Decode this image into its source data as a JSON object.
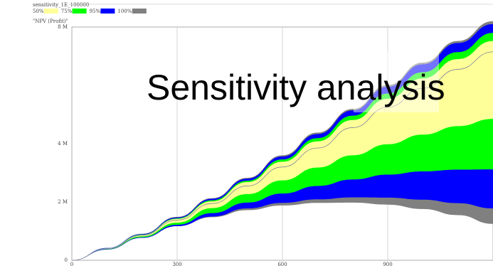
{
  "overlay_title": "Sensitivity analysis",
  "chart_data": {
    "type": "area",
    "title": "sensitivity_1E_100000",
    "ylabel": "\"NPV (Profit)\"",
    "xlabel": "",
    "ylim": [
      0,
      8
    ],
    "xlim": [
      0,
      1200
    ],
    "y_unit": "M",
    "y_ticks": [
      {
        "value": 0,
        "label": "0"
      },
      {
        "value": 2,
        "label": "2 M"
      },
      {
        "value": 4,
        "label": "4 M"
      },
      {
        "value": 8,
        "label": "8 M"
      }
    ],
    "x_ticks": [
      {
        "value": 0,
        "label": "0"
      },
      {
        "value": 300,
        "label": "300"
      },
      {
        "value": 600,
        "label": "600"
      },
      {
        "value": 900,
        "label": "900"
      }
    ],
    "legend": [
      {
        "label": "50%",
        "color": "#ffff99"
      },
      {
        "label": "75%",
        "color": "#00ff00"
      },
      {
        "label": "95%",
        "color": "#0000ff"
      },
      {
        "label": "100%",
        "color": "#808080"
      }
    ],
    "x": [
      0,
      100,
      200,
      300,
      400,
      500,
      600,
      700,
      800,
      900,
      1000,
      1100,
      1200
    ],
    "median": [
      0,
      0.4,
      0.85,
      1.38,
      1.95,
      2.55,
      3.2,
      3.85,
      4.55,
      5.25,
      5.9,
      6.55,
      7.15
    ],
    "bands": [
      {
        "name": "100%",
        "color": "#808080",
        "lower": [
          0,
          0.37,
          0.77,
          1.17,
          1.48,
          1.72,
          1.88,
          1.97,
          1.98,
          1.91,
          1.76,
          1.55,
          1.25
        ],
        "upper": [
          0,
          0.42,
          0.91,
          1.49,
          2.13,
          2.83,
          3.6,
          4.38,
          5.19,
          6.01,
          6.78,
          7.52,
          8.2
        ]
      },
      {
        "name": "95%",
        "color": "#0000ff",
        "lower": [
          0,
          0.37,
          0.77,
          1.17,
          1.5,
          1.78,
          1.97,
          2.09,
          2.16,
          2.15,
          2.08,
          1.96,
          1.78
        ],
        "upper": [
          0,
          0.42,
          0.9,
          1.47,
          2.11,
          2.8,
          3.56,
          4.33,
          5.14,
          5.95,
          6.72,
          7.45,
          8.1
        ]
      },
      {
        "name": "75%",
        "color": "#00ff00",
        "lower": [
          0,
          0.38,
          0.79,
          1.22,
          1.62,
          1.98,
          2.29,
          2.55,
          2.77,
          2.94,
          3.05,
          3.11,
          3.12
        ],
        "upper": [
          0,
          0.41,
          0.88,
          1.44,
          2.06,
          2.73,
          3.46,
          4.19,
          4.96,
          5.72,
          6.45,
          7.14,
          7.8
        ]
      },
      {
        "name": "50%",
        "color": "#ffff99",
        "lower": [
          0,
          0.39,
          0.82,
          1.29,
          1.79,
          2.27,
          2.74,
          3.18,
          3.6,
          3.98,
          4.31,
          4.6,
          4.85
        ],
        "upper": [
          0,
          0.41,
          0.87,
          1.42,
          2.02,
          2.68,
          3.38,
          4.08,
          4.81,
          5.54,
          6.24,
          6.9,
          7.52
        ]
      }
    ]
  }
}
